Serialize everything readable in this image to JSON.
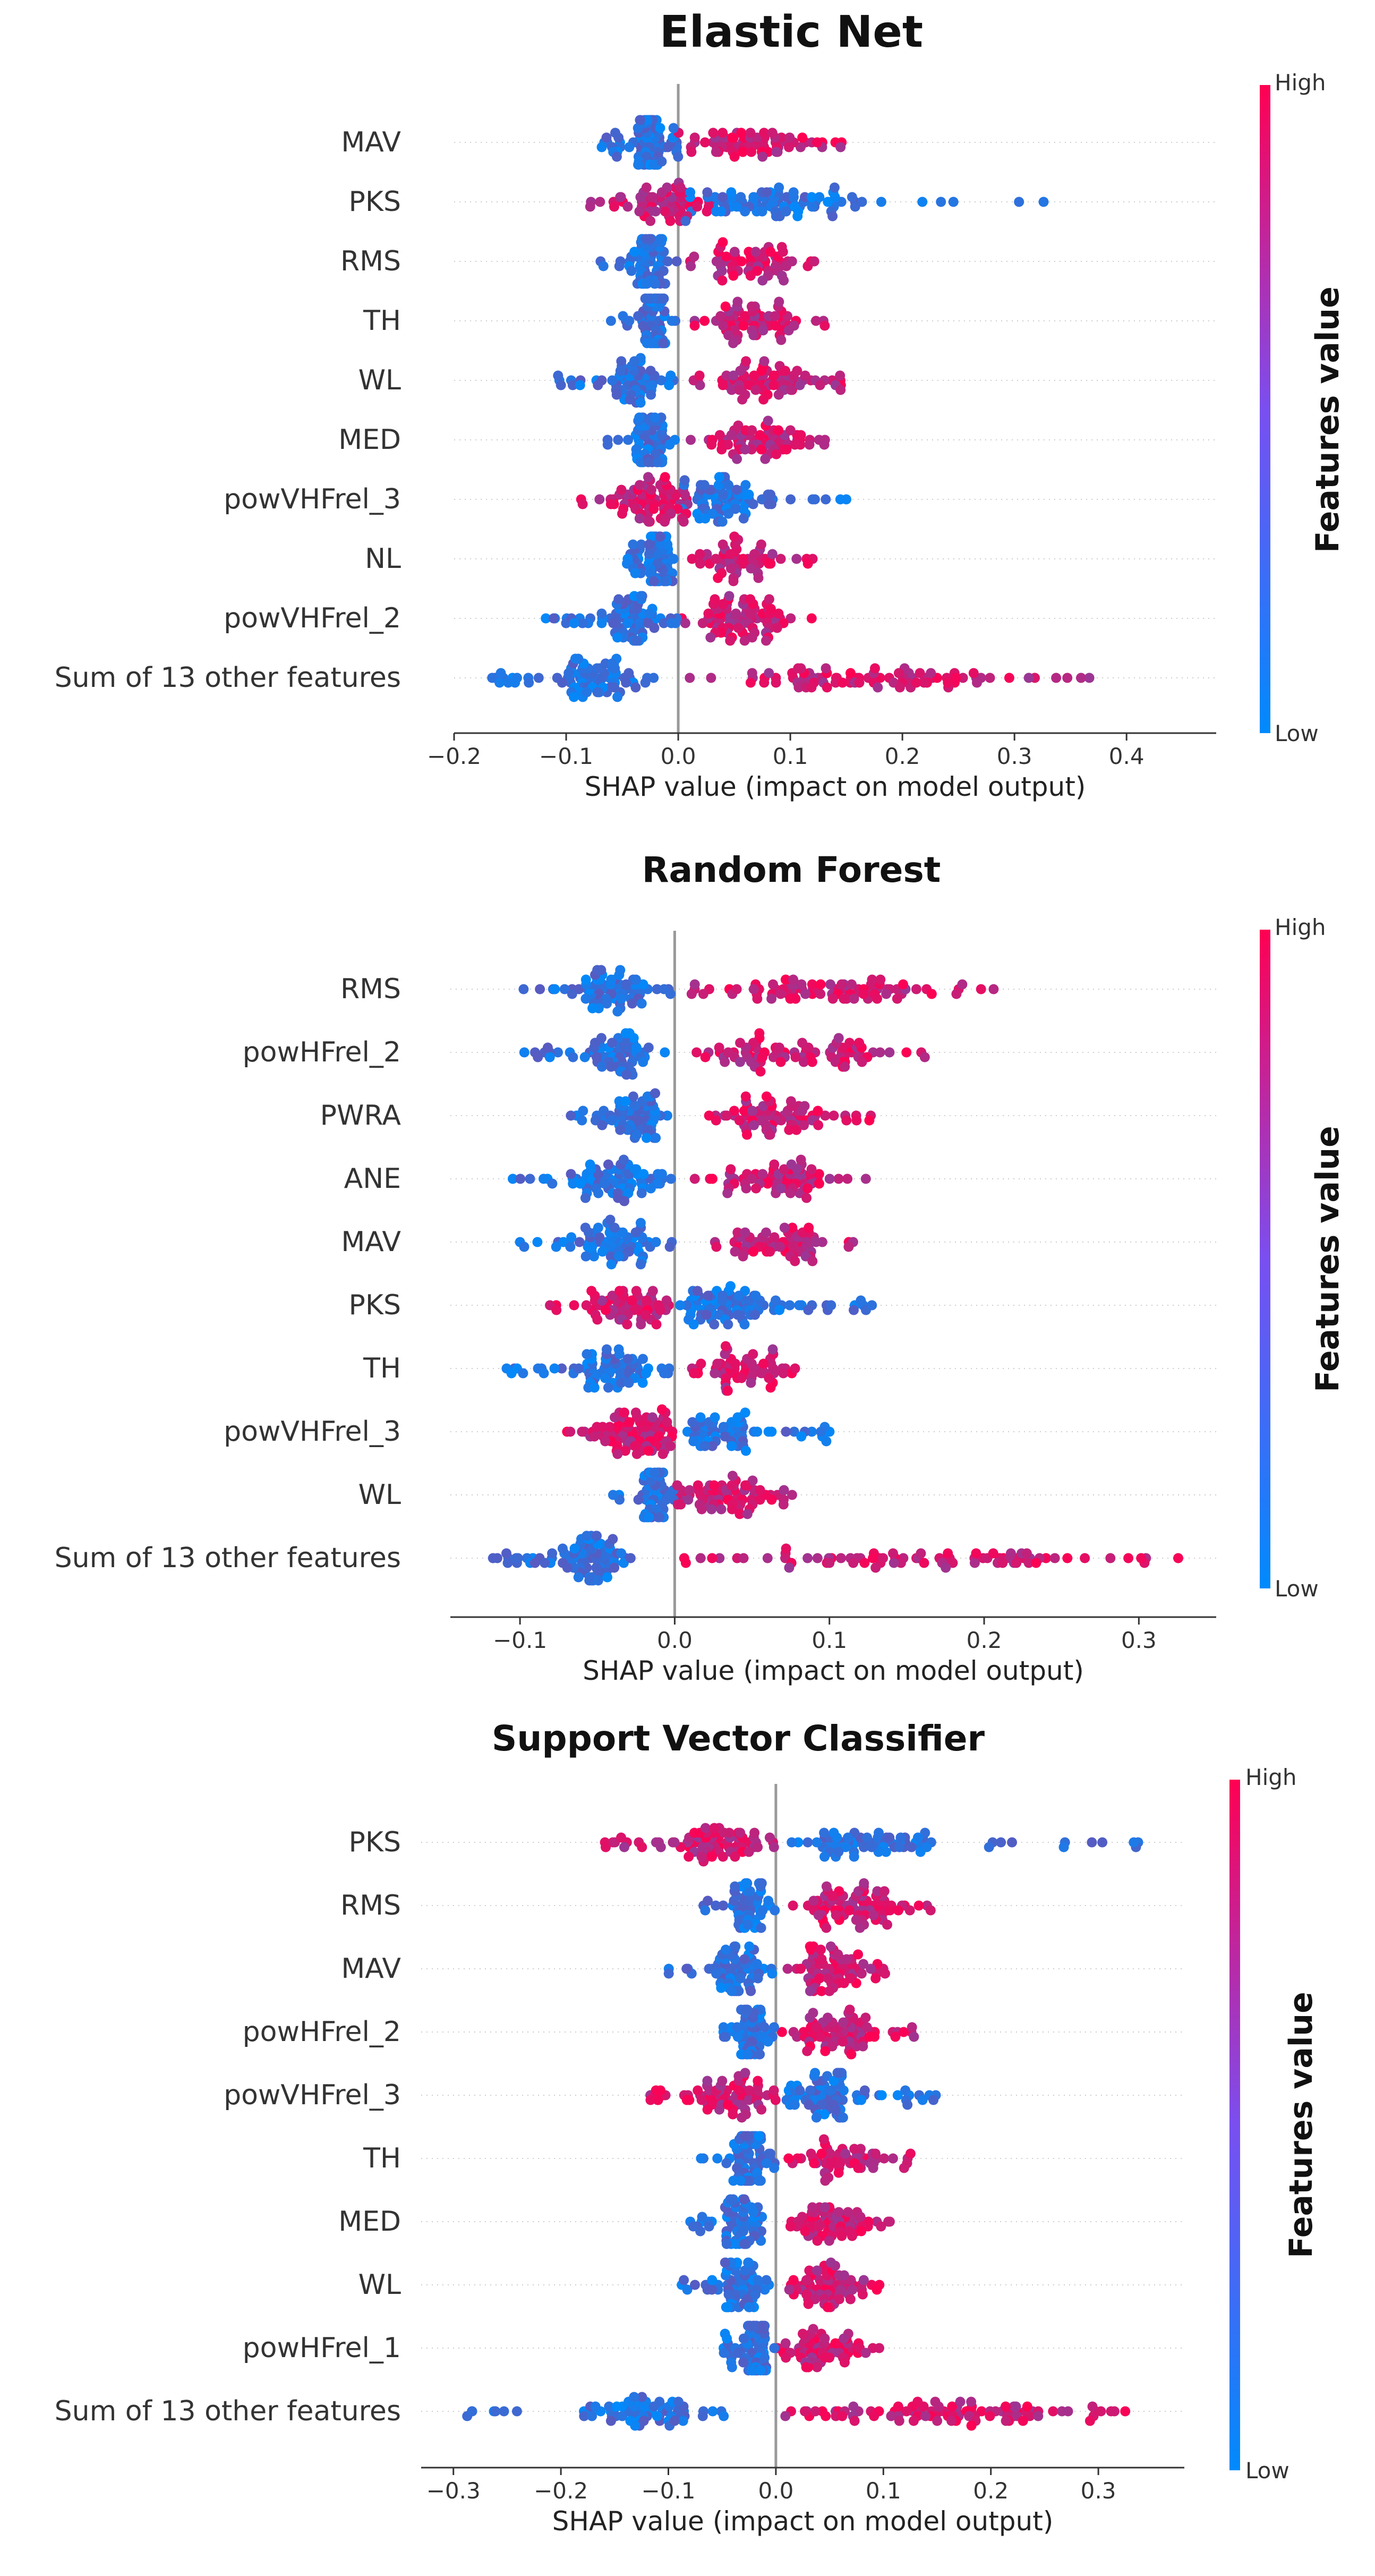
{
  "colors": {
    "low": "#008afb",
    "high": "#ff0052",
    "zero_line": "#999999",
    "row_line": "#cccccc"
  },
  "chart_data": [
    {
      "type": "scatter",
      "title": "Elastic Net",
      "xlabel": "SHAP value (impact on model output)",
      "xlim": [
        -0.2,
        0.48
      ],
      "xticks": [
        -0.2,
        -0.1,
        0.0,
        0.1,
        0.2,
        0.3,
        0.4
      ],
      "xtick_labels": [
        "−0.2",
        "−0.1",
        "0.0",
        "0.1",
        "0.2",
        "0.3",
        "0.4"
      ],
      "colorbar": {
        "high": "High",
        "low": "Low",
        "label": "Features value"
      },
      "features": [
        {
          "name": "MAV",
          "low_min": -0.07,
          "low_max": 0.0,
          "high_min": 0.0,
          "high_max": 0.15,
          "neg_color": "low",
          "density": 1.0
        },
        {
          "name": "PKS",
          "low_min": 0.0,
          "low_max": 0.33,
          "high_min": -0.08,
          "high_max": 0.03,
          "neg_color": "high",
          "density": 1.0
        },
        {
          "name": "RMS",
          "low_min": -0.07,
          "low_max": 0.0,
          "high_min": 0.01,
          "high_max": 0.13,
          "neg_color": "low",
          "density": 0.85
        },
        {
          "name": "TH",
          "low_min": -0.06,
          "low_max": 0.0,
          "high_min": 0.01,
          "high_max": 0.14,
          "neg_color": "low",
          "density": 0.9
        },
        {
          "name": "WL",
          "low_min": -0.11,
          "low_max": 0.0,
          "high_min": 0.01,
          "high_max": 0.15,
          "neg_color": "low",
          "density": 0.9
        },
        {
          "name": "MED",
          "low_min": -0.07,
          "low_max": 0.0,
          "high_min": 0.01,
          "high_max": 0.14,
          "neg_color": "low",
          "density": 0.85
        },
        {
          "name": "powVHFrel_3",
          "low_min": 0.0,
          "low_max": 0.15,
          "high_min": -0.09,
          "high_max": 0.02,
          "neg_color": "high",
          "density": 1.0
        },
        {
          "name": "NL",
          "low_min": -0.05,
          "low_max": 0.0,
          "high_min": 0.01,
          "high_max": 0.12,
          "neg_color": "low",
          "density": 0.85
        },
        {
          "name": "powVHFrel_2",
          "low_min": -0.12,
          "low_max": 0.0,
          "high_min": 0.0,
          "high_max": 0.13,
          "neg_color": "low",
          "density": 1.0
        },
        {
          "name": "Sum of 13 other features",
          "low_min": -0.17,
          "low_max": -0.02,
          "high_min": 0.0,
          "high_max": 0.38,
          "neg_color": "low",
          "density": 1.1
        }
      ]
    },
    {
      "type": "scatter",
      "title": "Random Forest",
      "xlabel": "SHAP value (impact on model output)",
      "xlim": [
        -0.145,
        0.35
      ],
      "xticks": [
        -0.1,
        0.0,
        0.1,
        0.2,
        0.3
      ],
      "xtick_labels": [
        "−0.1",
        "0.0",
        "0.1",
        "0.2",
        "0.3"
      ],
      "colorbar": {
        "high": "High",
        "low": "Low",
        "label": "Features value"
      },
      "features": [
        {
          "name": "RMS",
          "low_min": -0.11,
          "low_max": 0.0,
          "high_min": 0.01,
          "high_max": 0.21,
          "neg_color": "low",
          "density": 1.0
        },
        {
          "name": "powHFrel_2",
          "low_min": -0.1,
          "low_max": 0.0,
          "high_min": 0.01,
          "high_max": 0.17,
          "neg_color": "low",
          "density": 1.0
        },
        {
          "name": "PWRA",
          "low_min": -0.07,
          "low_max": 0.0,
          "high_min": 0.02,
          "high_max": 0.13,
          "neg_color": "low",
          "density": 0.95
        },
        {
          "name": "ANE",
          "low_min": -0.11,
          "low_max": 0.0,
          "high_min": 0.01,
          "high_max": 0.13,
          "neg_color": "low",
          "density": 0.95
        },
        {
          "name": "MAV",
          "low_min": -0.11,
          "low_max": 0.0,
          "high_min": 0.02,
          "high_max": 0.12,
          "neg_color": "low",
          "density": 0.9
        },
        {
          "name": "PKS",
          "low_min": 0.0,
          "low_max": 0.13,
          "high_min": -0.09,
          "high_max": 0.0,
          "neg_color": "high",
          "density": 1.0
        },
        {
          "name": "TH",
          "low_min": -0.11,
          "low_max": 0.0,
          "high_min": 0.01,
          "high_max": 0.09,
          "neg_color": "low",
          "density": 0.9
        },
        {
          "name": "powVHFrel_3",
          "low_min": 0.0,
          "low_max": 0.11,
          "high_min": -0.07,
          "high_max": 0.0,
          "neg_color": "high",
          "density": 1.0
        },
        {
          "name": "WL",
          "low_min": -0.04,
          "low_max": 0.0,
          "high_min": 0.0,
          "high_max": 0.08,
          "neg_color": "low",
          "density": 0.85
        },
        {
          "name": "Sum of 13 other features",
          "low_min": -0.12,
          "low_max": -0.02,
          "high_min": 0.0,
          "high_max": 0.34,
          "neg_color": "low",
          "density": 1.1
        }
      ]
    },
    {
      "type": "scatter",
      "title": "Support Vector Classifier",
      "xlabel": "SHAP value (impact on model output)",
      "xlim": [
        -0.33,
        0.38
      ],
      "xticks": [
        -0.3,
        -0.2,
        -0.1,
        0.0,
        0.1,
        0.2,
        0.3
      ],
      "xtick_labels": [
        "−0.3",
        "−0.2",
        "−0.1",
        "0.0",
        "0.1",
        "0.2",
        "0.3"
      ],
      "colorbar": {
        "high": "High",
        "low": "Low",
        "label": "Features value"
      },
      "features": [
        {
          "name": "PKS",
          "low_min": 0.0,
          "low_max": 0.34,
          "high_min": -0.16,
          "high_max": 0.0,
          "neg_color": "high",
          "density": 1.0
        },
        {
          "name": "RMS",
          "low_min": -0.07,
          "low_max": 0.0,
          "high_min": 0.01,
          "high_max": 0.15,
          "neg_color": "low",
          "density": 0.9
        },
        {
          "name": "MAV",
          "low_min": -0.1,
          "low_max": 0.0,
          "high_min": 0.01,
          "high_max": 0.11,
          "neg_color": "low",
          "density": 0.9
        },
        {
          "name": "powHFrel_2",
          "low_min": -0.06,
          "low_max": 0.0,
          "high_min": 0.0,
          "high_max": 0.13,
          "neg_color": "low",
          "density": 0.9
        },
        {
          "name": "powVHFrel_3",
          "low_min": 0.0,
          "low_max": 0.15,
          "high_min": -0.12,
          "high_max": 0.0,
          "neg_color": "high",
          "density": 1.0
        },
        {
          "name": "TH",
          "low_min": -0.07,
          "low_max": 0.0,
          "high_min": 0.01,
          "high_max": 0.13,
          "neg_color": "low",
          "density": 0.85
        },
        {
          "name": "MED",
          "low_min": -0.09,
          "low_max": 0.0,
          "high_min": 0.01,
          "high_max": 0.11,
          "neg_color": "low",
          "density": 0.85
        },
        {
          "name": "WL",
          "low_min": -0.09,
          "low_max": 0.0,
          "high_min": 0.01,
          "high_max": 0.1,
          "neg_color": "low",
          "density": 0.9
        },
        {
          "name": "powHFrel_1",
          "low_min": -0.05,
          "low_max": 0.0,
          "high_min": 0.0,
          "high_max": 0.1,
          "neg_color": "low",
          "density": 0.85
        },
        {
          "name": "Sum of 13 other features",
          "low_min": -0.29,
          "low_max": -0.04,
          "high_min": 0.0,
          "high_max": 0.33,
          "neg_color": "low",
          "density": 1.1
        }
      ]
    }
  ]
}
